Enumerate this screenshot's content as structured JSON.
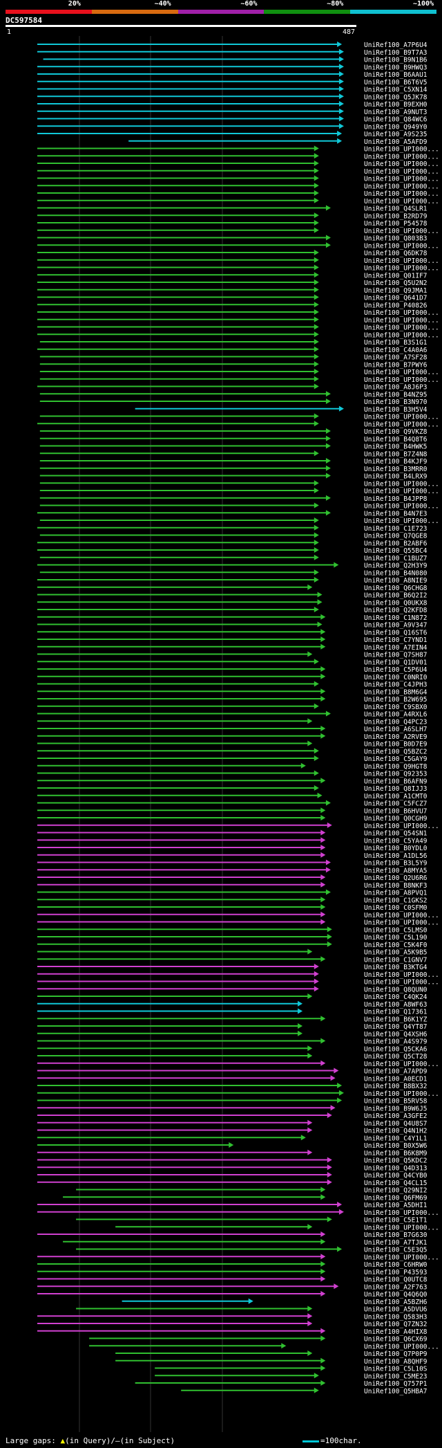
{
  "header": {
    "query_id": "DC597584",
    "ruler_start": "1",
    "ruler_end": "487",
    "colorbar": [
      {
        "label": "20%",
        "color": "#e8101c"
      },
      {
        "label": "~40%",
        "color": "#d86a10"
      },
      {
        "label": "~60%",
        "color": "#a020a8"
      },
      {
        "label": "~80%",
        "color": "#109010"
      },
      {
        "label": "~100%",
        "color": "#10c0d0"
      }
    ]
  },
  "colors": {
    "cyan": "#10c8d8",
    "green": "#30c030",
    "magenta": "#d040d0",
    "gap": "#ffff40"
  },
  "hits": [
    {
      "id": "UniRef100_A7P6U4",
      "c": "cyan",
      "qs": 1,
      "qe": 465
    },
    {
      "id": "UniRef100_B9T7A3",
      "c": "cyan",
      "qs": 1,
      "qe": 468
    },
    {
      "id": "UniRef100_B9N1B6",
      "c": "cyan",
      "qs": 10,
      "qe": 468
    },
    {
      "id": "UniRef100_B9HWQ3",
      "c": "cyan",
      "qs": 1,
      "qe": 468
    },
    {
      "id": "UniRef100_B6AAU1",
      "c": "cyan",
      "qs": 1,
      "qe": 468
    },
    {
      "id": "UniRef100_B6T6V5",
      "c": "cyan",
      "qs": 1,
      "qe": 468
    },
    {
      "id": "UniRef100_C5XN14",
      "c": "cyan",
      "qs": 1,
      "qe": 468
    },
    {
      "id": "UniRef100_Q5JK78",
      "c": "cyan",
      "qs": 1,
      "qe": 468
    },
    {
      "id": "UniRef100_B9EXH0",
      "c": "cyan",
      "qs": 1,
      "qe": 468
    },
    {
      "id": "UniRef100_A9NUT3",
      "c": "cyan",
      "qs": 1,
      "qe": 468
    },
    {
      "id": "UniRef100_Q84WC6",
      "c": "cyan",
      "qs": 1,
      "qe": 468
    },
    {
      "id": "UniRef100_Q949Y0",
      "c": "cyan",
      "qs": 1,
      "qe": 468
    },
    {
      "id": "UniRef100_A9S235",
      "c": "cyan",
      "qs": 1,
      "qe": 465
    },
    {
      "id": "UniRef100_A5AFD9",
      "c": "cyan",
      "qs": 140,
      "qe": 465
    },
    {
      "id": "UniRef100_UPI000...",
      "c": "green",
      "qs": 1,
      "qe": 430
    },
    {
      "id": "UniRef100_UPI000...",
      "c": "green",
      "qs": 1,
      "qe": 430
    },
    {
      "id": "UniRef100_UPI000...",
      "c": "green",
      "qs": 1,
      "qe": 430
    },
    {
      "id": "UniRef100_UPI000...",
      "c": "green",
      "qs": 1,
      "qe": 430
    },
    {
      "id": "UniRef100_UPI000...",
      "c": "green",
      "qs": 1,
      "qe": 430
    },
    {
      "id": "UniRef100_UPI000...",
      "c": "green",
      "qs": 1,
      "qe": 430
    },
    {
      "id": "UniRef100_UPI000...",
      "c": "green",
      "qs": 1,
      "qe": 430
    },
    {
      "id": "UniRef100_UPI000...",
      "c": "green",
      "qs": 1,
      "qe": 430
    },
    {
      "id": "UniRef100_Q4SLR1",
      "c": "green",
      "qs": 1,
      "qe": 448
    },
    {
      "id": "UniRef100_B2RD79",
      "c": "green",
      "qs": 1,
      "qe": 430
    },
    {
      "id": "UniRef100_P54578",
      "c": "green",
      "qs": 1,
      "qe": 430
    },
    {
      "id": "UniRef100_UPI000...",
      "c": "green",
      "qs": 1,
      "qe": 430
    },
    {
      "id": "UniRef100_Q803B3",
      "c": "green",
      "qs": 1,
      "qe": 448
    },
    {
      "id": "UniRef100_UPI000...",
      "c": "green",
      "qs": 1,
      "qe": 448
    },
    {
      "id": "UniRef100_Q6DK78",
      "c": "green",
      "qs": 1,
      "qe": 430
    },
    {
      "id": "UniRef100_UPI000...",
      "c": "green",
      "qs": 1,
      "qe": 430
    },
    {
      "id": "UniRef100_UPI000...",
      "c": "green",
      "qs": 1,
      "qe": 430
    },
    {
      "id": "UniRef100_Q01IF7",
      "c": "green",
      "qs": 1,
      "qe": 430
    },
    {
      "id": "UniRef100_Q5U2N2",
      "c": "green",
      "qs": 1,
      "qe": 430
    },
    {
      "id": "UniRef100_Q9JMA1",
      "c": "green",
      "qs": 1,
      "qe": 430
    },
    {
      "id": "UniRef100_Q641D7",
      "c": "green",
      "qs": 1,
      "qe": 430
    },
    {
      "id": "UniRef100_P40826",
      "c": "green",
      "qs": 1,
      "qe": 430
    },
    {
      "id": "UniRef100_UPI000...",
      "c": "green",
      "qs": 1,
      "qe": 430
    },
    {
      "id": "UniRef100_UPI000...",
      "c": "green",
      "qs": 1,
      "qe": 430
    },
    {
      "id": "UniRef100_UPI000...",
      "c": "green",
      "qs": 1,
      "qe": 430
    },
    {
      "id": "UniRef100_UPI000...",
      "c": "green",
      "qs": 1,
      "qe": 430
    },
    {
      "id": "UniRef100_B3S1G1",
      "c": "green",
      "qs": 5,
      "qe": 430
    },
    {
      "id": "UniRef100_C4A0A6",
      "c": "green",
      "qs": 1,
      "qe": 430
    },
    {
      "id": "UniRef100_A7SF28",
      "c": "green",
      "qs": 5,
      "qe": 430
    },
    {
      "id": "UniRef100_B7PWY6",
      "c": "green",
      "qs": 5,
      "qe": 430
    },
    {
      "id": "UniRef100_UPI000...",
      "c": "green",
      "qs": 5,
      "qe": 430
    },
    {
      "id": "UniRef100_UPI000...",
      "c": "green",
      "qs": 5,
      "qe": 430
    },
    {
      "id": "UniRef100_A8J6P3",
      "c": "green",
      "qs": 1,
      "qe": 430
    },
    {
      "id": "UniRef100_B4NZ95",
      "c": "green",
      "qs": 5,
      "qe": 448
    },
    {
      "id": "UniRef100_B3N970",
      "c": "green",
      "qs": 5,
      "qe": 448
    },
    {
      "id": "UniRef100_B3H5V4",
      "c": "cyan",
      "qs": 150,
      "qe": 468
    },
    {
      "id": "UniRef100_UPI000...",
      "c": "green",
      "qs": 5,
      "qe": 430
    },
    {
      "id": "UniRef100_UPI000...",
      "c": "green",
      "qs": 1,
      "qe": 430
    },
    {
      "id": "UniRef100_Q9VKZ8",
      "c": "green",
      "qs": 5,
      "qe": 448
    },
    {
      "id": "UniRef100_B4Q8T6",
      "c": "green",
      "qs": 5,
      "qe": 448
    },
    {
      "id": "UniRef100_B4HWK5",
      "c": "green",
      "qs": 5,
      "qe": 448
    },
    {
      "id": "UniRef100_B7Z4N8",
      "c": "green",
      "qs": 5,
      "qe": 430
    },
    {
      "id": "UniRef100_B4KJF9",
      "c": "green",
      "qs": 5,
      "qe": 448
    },
    {
      "id": "UniRef100_B3MRR0",
      "c": "green",
      "qs": 5,
      "qe": 448
    },
    {
      "id": "UniRef100_B4LRX9",
      "c": "green",
      "qs": 5,
      "qe": 448
    },
    {
      "id": "UniRef100_UPI000...",
      "c": "green",
      "qs": 5,
      "qe": 430
    },
    {
      "id": "UniRef100_UPI000...",
      "c": "green",
      "qs": 5,
      "qe": 430
    },
    {
      "id": "UniRef100_B4JPP8",
      "c": "green",
      "qs": 5,
      "qe": 448
    },
    {
      "id": "UniRef100_UPI000...",
      "c": "green",
      "qs": 5,
      "qe": 430
    },
    {
      "id": "UniRef100_B4N7E3",
      "c": "green",
      "qs": 1,
      "qe": 448
    },
    {
      "id": "UniRef100_UPI000...",
      "c": "green",
      "qs": 5,
      "qe": 430
    },
    {
      "id": "UniRef100_C1E723",
      "c": "green",
      "qs": 1,
      "qe": 430
    },
    {
      "id": "UniRef100_Q7QGE8",
      "c": "green",
      "qs": 5,
      "qe": 430
    },
    {
      "id": "UniRef100_B2ABF6",
      "c": "green",
      "qs": 1,
      "qe": 430
    },
    {
      "id": "UniRef100_Q55BC4",
      "c": "green",
      "qs": 1,
      "qe": 430
    },
    {
      "id": "UniRef100_C1BUZ7",
      "c": "green",
      "qs": 5,
      "qe": 430
    },
    {
      "id": "UniRef100_Q2H3Y9",
      "c": "green",
      "qs": 1,
      "qe": 460
    },
    {
      "id": "UniRef100_B4N080",
      "c": "green",
      "qs": 5,
      "qe": 430
    },
    {
      "id": "UniRef100_A8NIE9",
      "c": "green",
      "qs": 1,
      "qe": 430
    },
    {
      "id": "UniRef100_Q6CHG8",
      "c": "green",
      "qs": 1,
      "qe": 420
    },
    {
      "id": "UniRef100_B6Q2I2",
      "c": "green",
      "qs": 1,
      "qe": 435
    },
    {
      "id": "UniRef100_Q0UKX8",
      "c": "green",
      "qs": 1,
      "qe": 435
    },
    {
      "id": "UniRef100_Q2KFD8",
      "c": "green",
      "qs": 1,
      "qe": 430
    },
    {
      "id": "UniRef100_C1N872",
      "c": "green",
      "qs": 1,
      "qe": 440
    },
    {
      "id": "UniRef100_A9V347",
      "c": "green",
      "qs": 1,
      "qe": 435
    },
    {
      "id": "UniRef100_Q16ST6",
      "c": "green",
      "qs": 1,
      "qe": 440
    },
    {
      "id": "UniRef100_C7YND1",
      "c": "green",
      "qs": 1,
      "qe": 440
    },
    {
      "id": "UniRef100_A7EIN4",
      "c": "green",
      "qs": 1,
      "qe": 440
    },
    {
      "id": "UniRef100_Q7SH87",
      "c": "green",
      "qs": 1,
      "qe": 420
    },
    {
      "id": "UniRef100_Q1DV01",
      "c": "green",
      "qs": 1,
      "qe": 430
    },
    {
      "id": "UniRef100_C5P6U4",
      "c": "green",
      "qs": 1,
      "qe": 440
    },
    {
      "id": "UniRef100_C0NRI0",
      "c": "green",
      "qs": 1,
      "qe": 440
    },
    {
      "id": "UniRef100_C4JPH3",
      "c": "green",
      "qs": 1,
      "qe": 430
    },
    {
      "id": "UniRef100_B8M6G4",
      "c": "green",
      "qs": 1,
      "qe": 440
    },
    {
      "id": "UniRef100_B2W695",
      "c": "green",
      "qs": 1,
      "qe": 440
    },
    {
      "id": "UniRef100_C9SBX0",
      "c": "green",
      "qs": 1,
      "qe": 430
    },
    {
      "id": "UniRef100_A4RXL6",
      "c": "green",
      "qs": 1,
      "qe": 448
    },
    {
      "id": "UniRef100_Q4PC23",
      "c": "green",
      "qs": 1,
      "qe": 420
    },
    {
      "id": "UniRef100_A6SLH7",
      "c": "green",
      "qs": 1,
      "qe": 440
    },
    {
      "id": "UniRef100_A2RVE9",
      "c": "green",
      "qs": 1,
      "qe": 440
    },
    {
      "id": "UniRef100_B0D7E9",
      "c": "green",
      "qs": 1,
      "qe": 420
    },
    {
      "id": "UniRef100_Q5BZC2",
      "c": "green",
      "qs": 1,
      "qe": 430
    },
    {
      "id": "UniRef100_C5GAY9",
      "c": "green",
      "qs": 1,
      "qe": 430
    },
    {
      "id": "UniRef100_Q9HGT8",
      "c": "green",
      "qs": 1,
      "qe": 410
    },
    {
      "id": "UniRef100_Q92353",
      "c": "green",
      "qs": 1,
      "qe": 430
    },
    {
      "id": "UniRef100_B6AFN9",
      "c": "green",
      "qs": 1,
      "qe": 440
    },
    {
      "id": "UniRef100_Q8IJJ3",
      "c": "green",
      "qs": 1,
      "qe": 430
    },
    {
      "id": "UniRef100_A1CMT0",
      "c": "green",
      "qs": 1,
      "qe": 435
    },
    {
      "id": "UniRef100_C5FCZ7",
      "c": "green",
      "qs": 1,
      "qe": 448
    },
    {
      "id": "UniRef100_B6HVU7",
      "c": "green",
      "qs": 1,
      "qe": 440
    },
    {
      "id": "UniRef100_Q0CGH9",
      "c": "green",
      "qs": 1,
      "qe": 440
    },
    {
      "id": "UniRef100_UPI000...",
      "c": "magenta",
      "qs": 1,
      "qe": 450
    },
    {
      "id": "UniRef100_Q54SN1",
      "c": "magenta",
      "qs": 1,
      "qe": 440
    },
    {
      "id": "UniRef100_C5YA49",
      "c": "magenta",
      "qs": 1,
      "qe": 440
    },
    {
      "id": "UniRef100_B0YDL0",
      "c": "magenta",
      "qs": 1,
      "qe": 440
    },
    {
      "id": "UniRef100_A1DL56",
      "c": "magenta",
      "qs": 1,
      "qe": 440
    },
    {
      "id": "UniRef100_B3L5Y9",
      "c": "magenta",
      "qs": 1,
      "qe": 448
    },
    {
      "id": "UniRef100_A8MYA5",
      "c": "magenta",
      "qs": 1,
      "qe": 448
    },
    {
      "id": "UniRef100_Q2U6R6",
      "c": "magenta",
      "qs": 1,
      "qe": 440
    },
    {
      "id": "UniRef100_B8NKF3",
      "c": "magenta",
      "qs": 1,
      "qe": 440
    },
    {
      "id": "UniRef100_A8PVQ1",
      "c": "green",
      "qs": 1,
      "qe": 448
    },
    {
      "id": "UniRef100_C1GKS2",
      "c": "green",
      "qs": 1,
      "qe": 440
    },
    {
      "id": "UniRef100_C0SFM0",
      "c": "green",
      "qs": 1,
      "qe": 440
    },
    {
      "id": "UniRef100_UPI000...",
      "c": "magenta",
      "qs": 1,
      "qe": 440
    },
    {
      "id": "UniRef100_UPI000...",
      "c": "magenta",
      "qs": 1,
      "qe": 440
    },
    {
      "id": "UniRef100_C5LMS0",
      "c": "green",
      "qs": 1,
      "qe": 450
    },
    {
      "id": "UniRef100_C5L190",
      "c": "green",
      "qs": 1,
      "qe": 450
    },
    {
      "id": "UniRef100_C5K4F0",
      "c": "green",
      "qs": 1,
      "qe": 450
    },
    {
      "id": "UniRef100_A5K9B5",
      "c": "green",
      "qs": 1,
      "qe": 420
    },
    {
      "id": "UniRef100_C1GNV7",
      "c": "green",
      "qs": 1,
      "qe": 440
    },
    {
      "id": "UniRef100_B3KTG4",
      "c": "magenta",
      "qs": 1,
      "qe": 430
    },
    {
      "id": "UniRef100_UPI000...",
      "c": "magenta",
      "qs": 1,
      "qe": 430
    },
    {
      "id": "UniRef100_UPI000...",
      "c": "magenta",
      "qs": 1,
      "qe": 430
    },
    {
      "id": "UniRef100_Q8QUN0",
      "c": "magenta",
      "qs": 1,
      "qe": 430
    },
    {
      "id": "UniRef100_C4QK24",
      "c": "green",
      "qs": 1,
      "qe": 420
    },
    {
      "id": "UniRef100_A8WF63",
      "c": "cyan",
      "qs": 1,
      "qe": 405
    },
    {
      "id": "UniRef100_Q17361",
      "c": "cyan",
      "qs": 1,
      "qe": 405
    },
    {
      "id": "UniRef100_B6K1YZ",
      "c": "green",
      "qs": 1,
      "qe": 440
    },
    {
      "id": "UniRef100_Q4YT87",
      "c": "green",
      "qs": 1,
      "qe": 405
    },
    {
      "id": "UniRef100_Q4XSH6",
      "c": "green",
      "qs": 1,
      "qe": 405
    },
    {
      "id": "UniRef100_A4S979",
      "c": "green",
      "qs": 1,
      "qe": 440
    },
    {
      "id": "UniRef100_Q5CKA6",
      "c": "green",
      "qs": 1,
      "qe": 420
    },
    {
      "id": "UniRef100_Q5CT28",
      "c": "green",
      "qs": 1,
      "qe": 420
    },
    {
      "id": "UniRef100_UPI000...",
      "c": "magenta",
      "qs": 1,
      "qe": 440
    },
    {
      "id": "UniRef100_A7APD9",
      "c": "magenta",
      "qs": 1,
      "qe": 460
    },
    {
      "id": "UniRef100_A0ECD1",
      "c": "magenta",
      "qs": 1,
      "qe": 455
    },
    {
      "id": "UniRef100_B8BX32",
      "c": "green",
      "qs": 1,
      "qe": 465
    },
    {
      "id": "UniRef100_UPI000...",
      "c": "green",
      "qs": 1,
      "qe": 468
    },
    {
      "id": "UniRef100_B5RV58",
      "c": "green",
      "qs": 1,
      "qe": 465
    },
    {
      "id": "UniRef100_B9W6J5",
      "c": "magenta",
      "qs": 1,
      "qe": 455
    },
    {
      "id": "UniRef100_A3GFE2",
      "c": "magenta",
      "qs": 1,
      "qe": 450
    },
    {
      "id": "UniRef100_Q4U8S7",
      "c": "magenta",
      "qs": 1,
      "qe": 420
    },
    {
      "id": "UniRef100_Q4N1H2",
      "c": "magenta",
      "qs": 1,
      "qe": 420
    },
    {
      "id": "UniRef100_C4Y1L1",
      "c": "green",
      "qs": 1,
      "qe": 410
    },
    {
      "id": "UniRef100_B0X5W6",
      "c": "green",
      "qs": 1,
      "qe": 300
    },
    {
      "id": "UniRef100_B6K8M9",
      "c": "magenta",
      "qs": 1,
      "qe": 420
    },
    {
      "id": "UniRef100_Q5KDC2",
      "c": "magenta",
      "qs": 1,
      "qe": 450
    },
    {
      "id": "UniRef100_Q4D313",
      "c": "magenta",
      "qs": 1,
      "qe": 450
    },
    {
      "id": "UniRef100_Q4CYB0",
      "c": "magenta",
      "qs": 1,
      "qe": 450
    },
    {
      "id": "UniRef100_Q4CL15",
      "c": "magenta",
      "qs": 1,
      "qe": 450
    },
    {
      "id": "UniRef100_Q29NI2",
      "c": "green",
      "qs": 60,
      "qe": 440
    },
    {
      "id": "UniRef100_Q6FM69",
      "c": "green",
      "qs": 40,
      "qe": 440
    },
    {
      "id": "UniRef100_A5DHI1",
      "c": "magenta",
      "qs": 1,
      "qe": 465
    },
    {
      "id": "UniRef100_UPI000...",
      "c": "magenta",
      "qs": 1,
      "qe": 468
    },
    {
      "id": "UniRef100_C5E1T1",
      "c": "green",
      "qs": 60,
      "qe": 450
    },
    {
      "id": "UniRef100_UPI000...",
      "c": "green",
      "qs": 120,
      "qe": 420
    },
    {
      "id": "UniRef100_B7G630",
      "c": "magenta",
      "qs": 1,
      "qe": 440
    },
    {
      "id": "UniRef100_A7TJK1",
      "c": "green",
      "qs": 40,
      "qe": 440
    },
    {
      "id": "UniRef100_C5E3Q5",
      "c": "green",
      "qs": 60,
      "qe": 465
    },
    {
      "id": "UniRef100_UPI000...",
      "c": "magenta",
      "qs": 1,
      "qe": 440
    },
    {
      "id": "UniRef100_C6HRW0",
      "c": "green",
      "qs": 1,
      "qe": 440
    },
    {
      "id": "UniRef100_P43593",
      "c": "green",
      "qs": 1,
      "qe": 440
    },
    {
      "id": "UniRef100_Q0UTC8",
      "c": "magenta",
      "qs": 1,
      "qe": 440
    },
    {
      "id": "UniRef100_A2F763",
      "c": "magenta",
      "qs": 1,
      "qe": 460
    },
    {
      "id": "UniRef100_Q4Q6Q0",
      "c": "magenta",
      "qs": 1,
      "qe": 440
    },
    {
      "id": "UniRef100_A5BZH6",
      "c": "cyan",
      "qs": 130,
      "qe": 330
    },
    {
      "id": "UniRef100_A5DVU6",
      "c": "green",
      "qs": 60,
      "qe": 420
    },
    {
      "id": "UniRef100_Q583H3",
      "c": "magenta",
      "qs": 1,
      "qe": 420
    },
    {
      "id": "UniRef100_Q7ZN32",
      "c": "magenta",
      "qs": 1,
      "qe": 420
    },
    {
      "id": "UniRef100_A4HIX8",
      "c": "magenta",
      "qs": 1,
      "qe": 440
    },
    {
      "id": "UniRef100_Q6CX69",
      "c": "green",
      "qs": 80,
      "qe": 440
    },
    {
      "id": "UniRef100_UPI000...",
      "c": "green",
      "qs": 80,
      "qe": 380
    },
    {
      "id": "UniRef100_Q7P0P9",
      "c": "green",
      "qs": 120,
      "qe": 420
    },
    {
      "id": "UniRef100_A8QHF9",
      "c": "green",
      "qs": 120,
      "qe": 440
    },
    {
      "id": "UniRef100_C5L10S",
      "c": "green",
      "qs": 180,
      "qe": 440
    },
    {
      "id": "UniRef100_C5ME23",
      "c": "green",
      "qs": 180,
      "qe": 430
    },
    {
      "id": "UniRef100_Q757P1",
      "c": "green",
      "qs": 150,
      "qe": 440
    },
    {
      "id": "UniRef100_Q5HBA7",
      "c": "green",
      "qs": 220,
      "qe": 430
    }
  ],
  "footer": {
    "legend_prefix": "Large gaps: ",
    "legend_query_marker": "▲",
    "legend_query_text": "(in Query)/",
    "legend_subject_marker": "–",
    "legend_subject_text": "(in Subject)",
    "scale_text": "=100char."
  }
}
